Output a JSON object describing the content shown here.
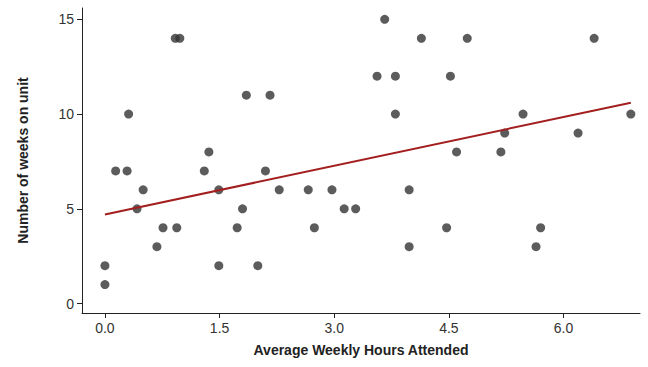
{
  "chart_data": {
    "type": "scatter",
    "x_label": "Average Weekly Hours Attended",
    "y_label": "Number of weeks on unit",
    "xlim": [
      -0.3,
      7.0
    ],
    "ylim": [
      -0.5,
      15.6
    ],
    "xticks": [
      {
        "value": 0,
        "label": "0.0"
      },
      1.5,
      {
        "value": 3,
        "label": "3.0"
      },
      4.5,
      {
        "value": 6,
        "label": "6.0"
      }
    ],
    "yticks": [
      0,
      5,
      10,
      15
    ],
    "grid": false,
    "series": [
      {
        "type": "scatter",
        "color": "#333333",
        "marker": "circle",
        "x": [
          0,
          0,
          0.14,
          0.29,
          0.31,
          0.42,
          0.5,
          0.68,
          0.76,
          0.92,
          0.98,
          0.94,
          1.3,
          1.36,
          1.49,
          1.49,
          1.73,
          1.8,
          1.85,
          2.0,
          2.1,
          2.16,
          2.28,
          2.66,
          2.74,
          2.97,
          3.13,
          3.28,
          3.56,
          3.66,
          3.8,
          3.8,
          3.98,
          3.98,
          4.14,
          4.47,
          4.52,
          4.6,
          4.74,
          5.18,
          5.23,
          5.47,
          5.64,
          5.7,
          6.19,
          6.4,
          6.88
        ],
        "values": [
          1,
          2,
          7,
          7,
          10,
          5,
          6,
          3,
          4,
          14,
          14,
          4,
          7,
          8,
          6,
          2,
          4,
          5,
          11,
          2,
          7,
          11,
          6,
          6,
          4,
          6,
          5,
          5,
          12,
          15,
          12,
          10,
          6,
          3,
          14,
          4,
          12,
          8,
          14,
          8,
          9,
          10,
          3,
          4,
          9,
          14,
          10
        ]
      },
      {
        "type": "line",
        "color": "#a31f1f",
        "line_style": "solid",
        "x": [
          0,
          6.88
        ],
        "values": [
          4.7,
          10.6
        ]
      }
    ]
  }
}
